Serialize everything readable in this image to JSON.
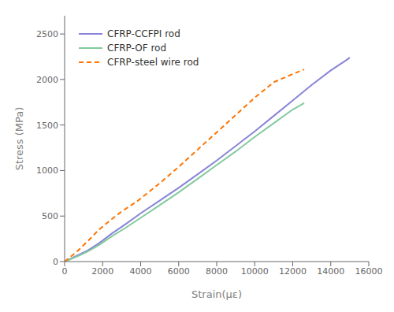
{
  "chart_data": {
    "type": "line",
    "xlabel": "Strain(με)",
    "ylabel": "Stress (MPa)",
    "xlim": [
      0,
      16000
    ],
    "ylim": [
      0,
      2700
    ],
    "xticks": [
      0,
      2000,
      4000,
      6000,
      8000,
      10000,
      12000,
      14000,
      16000
    ],
    "yticks": [
      0,
      500,
      1000,
      1500,
      2000,
      2500
    ],
    "grid": false,
    "legend": "upper left",
    "series": [
      {
        "name": "CFRP-CCFPI rod",
        "line_style": "solid",
        "x": [
          0,
          300,
          700,
          1200,
          1800,
          2500,
          3200,
          4000,
          5000,
          6000,
          7000,
          8000,
          9000,
          10000,
          11000,
          12000,
          13000,
          14000,
          14800,
          15000
        ],
        "values": [
          0,
          30,
          70,
          120,
          200,
          310,
          410,
          530,
          670,
          810,
          960,
          1110,
          1270,
          1430,
          1600,
          1770,
          1940,
          2100,
          2210,
          2240
        ]
      },
      {
        "name": "CFRP-OF rod",
        "line_style": "solid",
        "x": [
          0,
          300,
          700,
          1200,
          1800,
          2500,
          3200,
          4000,
          5000,
          6000,
          7000,
          8000,
          9000,
          10000,
          11000,
          12000,
          12600
        ],
        "values": [
          0,
          25,
          60,
          110,
          180,
          280,
          370,
          480,
          620,
          760,
          910,
          1060,
          1210,
          1370,
          1520,
          1670,
          1740
        ]
      },
      {
        "name": "CFRP-steel wire rod",
        "line_style": "dashed",
        "x": [
          0,
          300,
          700,
          1200,
          1800,
          2500,
          3000,
          3800,
          5000,
          6000,
          7000,
          8000,
          9000,
          10000,
          11000,
          12000,
          12600
        ],
        "values": [
          0,
          50,
          120,
          220,
          350,
          470,
          550,
          660,
          860,
          1040,
          1230,
          1420,
          1610,
          1800,
          1970,
          2060,
          2110
        ]
      }
    ]
  }
}
